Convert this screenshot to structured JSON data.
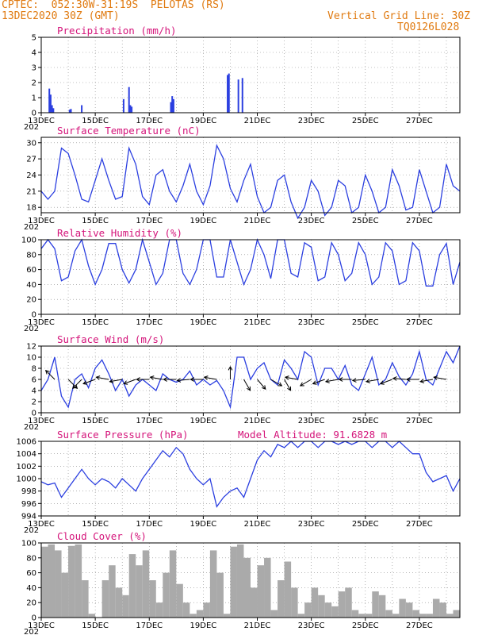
{
  "header": {
    "line1": "CPTEC:  052:30W-31:19S  PELOTAS (RS)",
    "line2": "13DEC2020 30Z (GMT)",
    "right1": "Vertical Grid Line: 30Z",
    "right2": "TQ0126L028"
  },
  "colors": {
    "line": "#2b3fe0",
    "bar": "#2b3fe0",
    "cloud": "#aaaaaa",
    "title": "#d4147a",
    "header": "#e07a10",
    "wind_arrow": "#000000"
  },
  "x_axis": {
    "days_total": 15.5,
    "tick_labels": [
      "13DEC",
      "15DEC",
      "17DEC",
      "19DEC",
      "21DEC",
      "23DEC",
      "25DEC",
      "27DEC"
    ],
    "tick_days": [
      0,
      2,
      4,
      6,
      8,
      10,
      12,
      14
    ],
    "year_stub": "202"
  },
  "chart_data": [
    {
      "type": "bar",
      "title": "Precipitation (mm/h)",
      "ylim": [
        0,
        5
      ],
      "yticks": [
        0,
        1,
        2,
        3,
        4,
        5
      ],
      "x_days": [
        0.3,
        0.35,
        0.4,
        0.45,
        1.05,
        1.1,
        1.5,
        3.05,
        3.25,
        3.3,
        3.35,
        4.8,
        4.85,
        4.9,
        6.9,
        6.95,
        7.3,
        7.45
      ],
      "values": [
        1.6,
        1.2,
        0.5,
        0.3,
        0.2,
        0.25,
        0.5,
        0.9,
        1.7,
        0.5,
        0.4,
        0.7,
        1.1,
        0.9,
        2.5,
        2.6,
        2.2,
        2.3
      ]
    },
    {
      "type": "line",
      "title": "Surface Temperature (nC)",
      "ylim": [
        17,
        31
      ],
      "yticks": [
        18,
        21,
        24,
        27,
        30
      ],
      "x_days": [
        0,
        0.25,
        0.5,
        0.75,
        1.0,
        1.25,
        1.5,
        1.75,
        2.0,
        2.25,
        2.5,
        2.75,
        3.0,
        3.25,
        3.5,
        3.75,
        4.0,
        4.25,
        4.5,
        4.75,
        5.0,
        5.25,
        5.5,
        5.75,
        6.0,
        6.25,
        6.5,
        6.75,
        7.0,
        7.25,
        7.5,
        7.75,
        8.0,
        8.25,
        8.5,
        8.75,
        9.0,
        9.25,
        9.5,
        9.75,
        10.0,
        10.25,
        10.5,
        10.75,
        11.0,
        11.25,
        11.5,
        11.75,
        12.0,
        12.25,
        12.5,
        12.75,
        13.0,
        13.25,
        13.5,
        13.75,
        14.0,
        14.25,
        14.5,
        14.75,
        15.0,
        15.25,
        15.5
      ],
      "values": [
        21,
        19.5,
        21,
        29,
        28,
        24,
        19.5,
        19,
        23,
        27,
        23,
        19.5,
        20,
        29,
        26,
        20,
        18.5,
        24,
        25,
        21,
        19,
        22,
        26,
        21,
        18.5,
        22,
        29.5,
        27,
        21.5,
        19,
        23,
        26,
        20,
        17,
        18,
        23,
        24,
        19,
        16,
        18,
        23,
        21,
        16.5,
        18,
        23,
        22,
        17,
        18,
        24,
        21,
        17,
        18,
        25,
        22,
        17.5,
        18,
        25,
        21,
        17,
        18,
        26,
        22,
        21
      ]
    },
    {
      "type": "line",
      "title": "Relative Humidity (%)",
      "ylim": [
        0,
        100
      ],
      "yticks": [
        0,
        20,
        40,
        60,
        80,
        100
      ],
      "x_days": [
        0,
        0.25,
        0.5,
        0.75,
        1.0,
        1.25,
        1.5,
        1.75,
        2.0,
        2.25,
        2.5,
        2.75,
        3.0,
        3.25,
        3.5,
        3.75,
        4.0,
        4.25,
        4.5,
        4.75,
        5.0,
        5.25,
        5.5,
        5.75,
        6.0,
        6.25,
        6.5,
        6.75,
        7.0,
        7.25,
        7.5,
        7.75,
        8.0,
        8.25,
        8.5,
        8.75,
        9.0,
        9.25,
        9.5,
        9.75,
        10.0,
        10.25,
        10.5,
        10.75,
        11.0,
        11.25,
        11.5,
        11.75,
        12.0,
        12.25,
        12.5,
        12.75,
        13.0,
        13.25,
        13.5,
        13.75,
        14.0,
        14.25,
        14.5,
        14.75,
        15.0,
        15.25,
        15.5
      ],
      "values": [
        88,
        100,
        88,
        45,
        50,
        85,
        100,
        65,
        40,
        60,
        95,
        95,
        60,
        42,
        60,
        100,
        70,
        40,
        55,
        100,
        100,
        55,
        40,
        60,
        100,
        100,
        50,
        50,
        100,
        70,
        40,
        60,
        100,
        80,
        48,
        100,
        100,
        55,
        50,
        96,
        90,
        45,
        50,
        96,
        80,
        45,
        55,
        96,
        80,
        40,
        50,
        96,
        85,
        40,
        45,
        96,
        85,
        38,
        38,
        80,
        95,
        40,
        70
      ]
    },
    {
      "type": "line",
      "title": "Surface Wind (m/s)",
      "ylim": [
        0,
        12
      ],
      "yticks": [
        0,
        2,
        4,
        6,
        8,
        10,
        12
      ],
      "x_days": [
        0,
        0.25,
        0.5,
        0.75,
        1.0,
        1.25,
        1.5,
        1.75,
        2.0,
        2.25,
        2.5,
        2.75,
        3.0,
        3.25,
        3.5,
        3.75,
        4.0,
        4.25,
        4.5,
        4.75,
        5.0,
        5.25,
        5.5,
        5.75,
        6.0,
        6.25,
        6.5,
        6.75,
        7.0,
        7.25,
        7.5,
        7.75,
        8.0,
        8.25,
        8.5,
        8.75,
        9.0,
        9.25,
        9.5,
        9.75,
        10.0,
        10.25,
        10.5,
        10.75,
        11.0,
        11.25,
        11.5,
        11.75,
        12.0,
        12.25,
        12.5,
        12.75,
        13.0,
        13.25,
        13.5,
        13.75,
        14.0,
        14.25,
        14.5,
        14.75,
        15.0,
        15.25,
        15.5
      ],
      "values": [
        4,
        6,
        10,
        3,
        1,
        6,
        7,
        4.5,
        8,
        9.5,
        7,
        4,
        6,
        3,
        5,
        6,
        5,
        4,
        7,
        6,
        5.5,
        6,
        7.5,
        5,
        6,
        5,
        5.8,
        4,
        1,
        10,
        10,
        6,
        8,
        9,
        6,
        5,
        9.5,
        8,
        6,
        11,
        10,
        5,
        8,
        8,
        6,
        8.5,
        5,
        4,
        7,
        10,
        5,
        6,
        9,
        6.5,
        5,
        7,
        11,
        6,
        5,
        8,
        11,
        9,
        12
      ],
      "arrows_x_days": [
        0.5,
        1.0,
        1.5,
        2.0,
        2.5,
        3.0,
        3.5,
        4.0,
        4.5,
        5.0,
        5.5,
        6.0,
        6.5,
        7.0,
        7.5,
        8.0,
        8.5,
        9.0,
        9.5,
        10.0,
        10.5,
        11.0,
        11.5,
        12.0,
        12.5,
        13.0,
        13.5,
        14.0,
        14.5,
        15.0
      ],
      "arrows_dir_deg": [
        135,
        315,
        225,
        200,
        170,
        190,
        200,
        180,
        170,
        180,
        185,
        180,
        170,
        90,
        300,
        310,
        330,
        300,
        170,
        210,
        200,
        190,
        180,
        185,
        190,
        200,
        175,
        180,
        190,
        170
      ]
    },
    {
      "type": "line",
      "title": "Surface Pressure (hPa)",
      "annotation": "Model Altitude: 91.6828 m",
      "ylim": [
        994,
        1006
      ],
      "yticks": [
        994,
        996,
        998,
        1000,
        1002,
        1004,
        1006
      ],
      "x_days": [
        0,
        0.25,
        0.5,
        0.75,
        1.0,
        1.25,
        1.5,
        1.75,
        2.0,
        2.25,
        2.5,
        2.75,
        3.0,
        3.25,
        3.5,
        3.75,
        4.0,
        4.25,
        4.5,
        4.75,
        5.0,
        5.25,
        5.5,
        5.75,
        6.0,
        6.25,
        6.5,
        6.75,
        7.0,
        7.25,
        7.5,
        7.75,
        8.0,
        8.25,
        8.5,
        8.75,
        9.0,
        9.25,
        9.5,
        9.75,
        10.0,
        10.25,
        10.5,
        10.75,
        11.0,
        11.25,
        11.5,
        11.75,
        12.0,
        12.25,
        12.5,
        12.75,
        13.0,
        13.25,
        13.5,
        13.75,
        14.0,
        14.25,
        14.5,
        14.75,
        15.0,
        15.25,
        15.5
      ],
      "values": [
        999.5,
        999,
        999.3,
        997,
        998.5,
        1000,
        1001.5,
        1000,
        999,
        1000,
        999.5,
        998.5,
        1000,
        999,
        998,
        1000,
        1001.5,
        1003,
        1004.5,
        1003.5,
        1005,
        1004,
        1001.5,
        1000,
        999,
        1000,
        995.5,
        997,
        998,
        998.5,
        997,
        1000,
        1003,
        1004.5,
        1003.5,
        1005.5,
        1005,
        1006,
        1005,
        1006,
        1006,
        1005,
        1006,
        1006,
        1005.5,
        1006,
        1005.5,
        1006,
        1006,
        1005,
        1006,
        1006,
        1005,
        1006,
        1005,
        1004,
        1004,
        1001,
        999.5,
        1000,
        1000.5,
        998,
        1000
      ]
    },
    {
      "type": "bar",
      "title": "Cloud Cover (%)",
      "ylim": [
        0,
        100
      ],
      "yticks": [
        0,
        20,
        40,
        60,
        80,
        100
      ],
      "x_days": [
        0,
        0.25,
        0.5,
        0.75,
        1.0,
        1.25,
        1.5,
        1.75,
        2.0,
        2.25,
        2.5,
        2.75,
        3.0,
        3.25,
        3.5,
        3.75,
        4.0,
        4.25,
        4.5,
        4.75,
        5.0,
        5.25,
        5.5,
        5.75,
        6.0,
        6.25,
        6.5,
        6.75,
        7.0,
        7.25,
        7.5,
        7.75,
        8.0,
        8.25,
        8.5,
        8.75,
        9.0,
        9.25,
        9.5,
        9.75,
        10.0,
        10.25,
        10.5,
        10.75,
        11.0,
        11.25,
        11.5,
        11.75,
        12.0,
        12.25,
        12.5,
        12.75,
        13.0,
        13.25,
        13.5,
        13.75,
        14.0,
        14.25,
        14.5,
        14.75,
        15.0,
        15.25,
        15.5
      ],
      "values": [
        95,
        98,
        90,
        60,
        96,
        98,
        50,
        5,
        0,
        50,
        70,
        40,
        30,
        85,
        70,
        90,
        50,
        20,
        60,
        90,
        45,
        20,
        5,
        10,
        20,
        90,
        60,
        5,
        95,
        98,
        80,
        40,
        70,
        80,
        10,
        50,
        75,
        40,
        5,
        20,
        40,
        30,
        20,
        15,
        35,
        40,
        10,
        5,
        5,
        35,
        30,
        10,
        5,
        25,
        20,
        10,
        5,
        5,
        25,
        20,
        5,
        10,
        0
      ]
    }
  ]
}
